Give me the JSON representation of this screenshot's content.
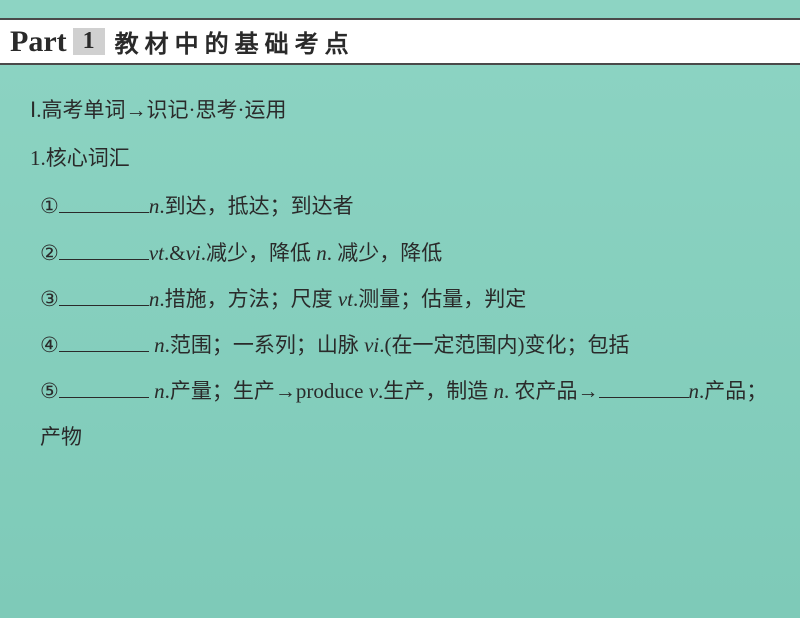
{
  "colors": {
    "background_top": "#8dd4c3",
    "background_bottom": "#7ecab8",
    "header_bg": "#ffffff",
    "border": "#4a4a4a",
    "number_bg": "#d0d0d0",
    "text": "#2a2a2a"
  },
  "typography": {
    "part_label_size": 30,
    "header_title_size": 24,
    "body_size": 21,
    "line_height": 2.2
  },
  "header": {
    "part_label": "Part",
    "part_number": "1",
    "title": "教材中的基础考点"
  },
  "section": {
    "title_prefix": "Ⅰ.高考单词→",
    "title_suffix": "识记·思考·运用",
    "subsection": "1.核心词汇"
  },
  "items": [
    {
      "num": "①",
      "parts": [
        {
          "type": "blank"
        },
        {
          "type": "italic",
          "text": "n"
        },
        {
          "type": "text",
          "text": ".到达，抵达；到达者"
        }
      ]
    },
    {
      "num": "②",
      "parts": [
        {
          "type": "blank"
        },
        {
          "type": "italic",
          "text": "vt"
        },
        {
          "type": "text",
          "text": ".&"
        },
        {
          "type": "italic",
          "text": "vi"
        },
        {
          "type": "text",
          "text": ".减少，降低 "
        },
        {
          "type": "italic",
          "text": "n"
        },
        {
          "type": "text",
          "text": ". 减少，降低"
        }
      ]
    },
    {
      "num": "③",
      "parts": [
        {
          "type": "blank"
        },
        {
          "type": "italic",
          "text": "n"
        },
        {
          "type": "text",
          "text": ".措施，方法；尺度 "
        },
        {
          "type": "italic",
          "text": "vt"
        },
        {
          "type": "text",
          "text": ".测量；估量，判定"
        }
      ]
    },
    {
      "num": "④",
      "parts": [
        {
          "type": "blank"
        },
        {
          "type": "text",
          "text": " "
        },
        {
          "type": "italic",
          "text": "n"
        },
        {
          "type": "text",
          "text": ".范围；一系列；山脉 "
        },
        {
          "type": "italic",
          "text": "vi"
        },
        {
          "type": "text",
          "text": ".(在一定范围内)变化；包括"
        }
      ]
    },
    {
      "num": "⑤",
      "parts": [
        {
          "type": "blank"
        },
        {
          "type": "text",
          "text": " "
        },
        {
          "type": "italic",
          "text": "n"
        },
        {
          "type": "text",
          "text": ".产量；生产→produce "
        },
        {
          "type": "italic",
          "text": "v"
        },
        {
          "type": "text",
          "text": ".生产，制造 "
        },
        {
          "type": "italic",
          "text": "n"
        },
        {
          "type": "text",
          "text": ". 农产品→"
        },
        {
          "type": "blank"
        },
        {
          "type": "italic",
          "text": "n"
        },
        {
          "type": "text",
          "text": ".产品；产物"
        }
      ]
    }
  ]
}
